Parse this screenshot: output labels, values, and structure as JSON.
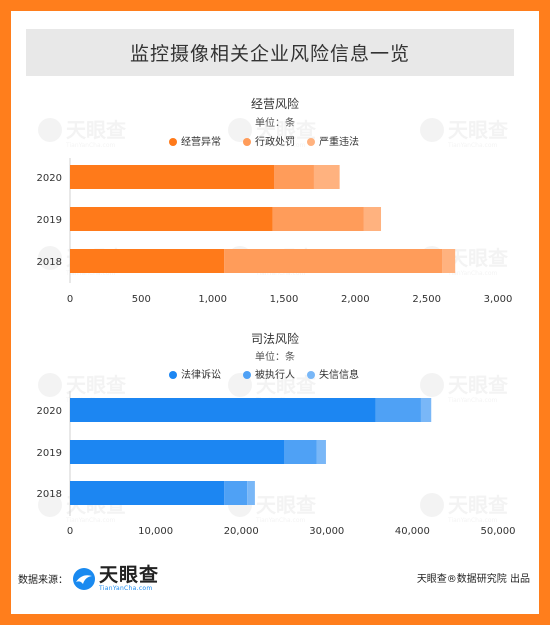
{
  "title": "监控摄像相关企业风险信息一览",
  "colors": {
    "border": "#ff7e1c",
    "orange_1": "#ff7a1a",
    "orange_2": "#ff9c5a",
    "orange_3": "#ffb27f",
    "blue_1": "#1c86f2",
    "blue_2": "#4fa1f5",
    "blue_3": "#79b7f7"
  },
  "chart_data": [
    {
      "type": "bar",
      "orientation": "horizontal",
      "stacked": true,
      "title": "经营风险",
      "subtitle": "单位：条",
      "categories": [
        "2020",
        "2019",
        "2018"
      ],
      "series": [
        {
          "name": "经营异常",
          "color": "#ff7a1a",
          "values": [
            1430,
            1420,
            1080
          ]
        },
        {
          "name": "行政处罚",
          "color": "#ff9c5a",
          "values": [
            280,
            640,
            1530
          ]
        },
        {
          "name": "严重违法",
          "color": "#ffb27f",
          "values": [
            180,
            120,
            90
          ]
        }
      ],
      "xlim": [
        0,
        3000
      ],
      "xticks": [
        "0",
        "500",
        "1,000",
        "1,500",
        "2,000",
        "2,500",
        "3,000"
      ],
      "legend_position": "top"
    },
    {
      "type": "bar",
      "orientation": "horizontal",
      "stacked": true,
      "title": "司法风险",
      "subtitle": "单位：条",
      "categories": [
        "2020",
        "2019",
        "2018"
      ],
      "series": [
        {
          "name": "法律诉讼",
          "color": "#1c86f2",
          "values": [
            35700,
            25000,
            18000
          ]
        },
        {
          "name": "被执行人",
          "color": "#4fa1f5",
          "values": [
            5300,
            3800,
            2700
          ]
        },
        {
          "name": "失信信息",
          "color": "#79b7f7",
          "values": [
            1200,
            1100,
            900
          ]
        }
      ],
      "xlim": [
        0,
        50000
      ],
      "xticks": [
        "0",
        "10,000",
        "20,000",
        "30,000",
        "40,000",
        "50,000"
      ],
      "legend_position": "top"
    }
  ],
  "footer": {
    "source_label": "数据来源：",
    "logo_name": "天眼查",
    "logo_domain": "TianYanCha.com",
    "credit": "天眼查®数据研究院 出品"
  },
  "watermark": {
    "name": "天眼查",
    "domain": "TianYanCha.com"
  }
}
